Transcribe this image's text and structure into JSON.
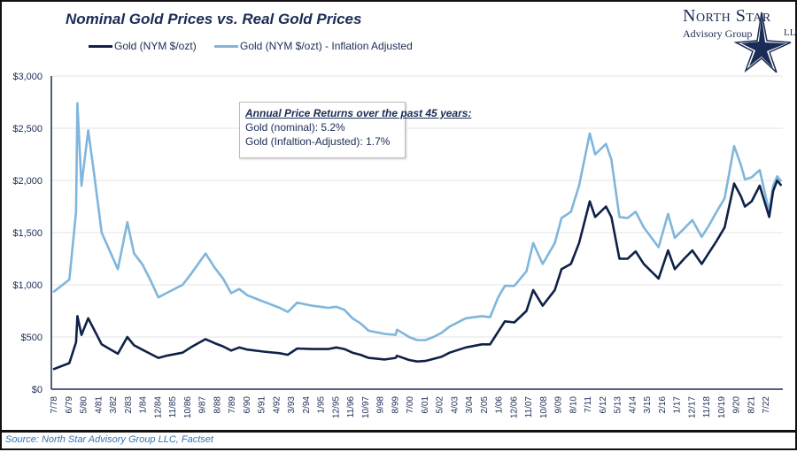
{
  "chart_data": {
    "type": "line",
    "title": "Nominal Gold Prices vs. Real Gold Prices",
    "xlabel": "",
    "ylabel": "",
    "ylim": [
      0,
      3000
    ],
    "y_ticks": [
      "$0",
      "$500",
      "$1,000",
      "$1,500",
      "$2,000",
      "$2,500",
      "$3,000"
    ],
    "y_tick_values": [
      0,
      500,
      1000,
      1500,
      2000,
      2500,
      3000
    ],
    "x_ticks": [
      "7/78",
      "6/79",
      "5/80",
      "4/81",
      "3/82",
      "2/83",
      "1/84",
      "12/84",
      "11/85",
      "10/86",
      "9/87",
      "8/88",
      "7/89",
      "6/90",
      "5/91",
      "4/92",
      "3/93",
      "2/94",
      "1/95",
      "12/95",
      "11/96",
      "10/97",
      "9/98",
      "8/99",
      "7/00",
      "6/01",
      "5/02",
      "4/03",
      "3/04",
      "2/05",
      "1/06",
      "12/06",
      "11/07",
      "10/08",
      "9/09",
      "8/10",
      "7/11",
      "6/12",
      "5/13",
      "4/14",
      "3/15",
      "2/16",
      "1/17",
      "12/17",
      "11/18",
      "10/19",
      "9/20",
      "8/21",
      "7/22"
    ],
    "grid": true,
    "legend_position": "top",
    "x": [
      "1978-07",
      "1979-07",
      "1979-12",
      "1980-01",
      "1980-04",
      "1980-09",
      "1981-01",
      "1981-07",
      "1982-07",
      "1983-02",
      "1983-07",
      "1984-01",
      "1984-07",
      "1985-01",
      "1985-07",
      "1986-07",
      "1987-01",
      "1987-12",
      "1988-07",
      "1989-01",
      "1989-07",
      "1990-01",
      "1990-07",
      "1991-07",
      "1992-07",
      "1993-01",
      "1993-08",
      "1994-07",
      "1995-07",
      "1996-01",
      "1996-07",
      "1997-01",
      "1997-07",
      "1998-01",
      "1999-01",
      "1999-09",
      "1999-10",
      "2000-07",
      "2001-01",
      "2001-07",
      "2002-01",
      "2002-07",
      "2003-01",
      "2004-01",
      "2005-01",
      "2005-07",
      "2006-01",
      "2006-06",
      "2007-01",
      "2007-10",
      "2008-03",
      "2008-10",
      "2009-07",
      "2009-12",
      "2010-07",
      "2011-01",
      "2011-09",
      "2012-01",
      "2012-09",
      "2013-01",
      "2013-07",
      "2014-01",
      "2014-07",
      "2015-01",
      "2015-12",
      "2016-07",
      "2016-12",
      "2017-07",
      "2018-01",
      "2018-08",
      "2019-01",
      "2019-07",
      "2020-01",
      "2020-08",
      "2021-01",
      "2021-04",
      "2021-09",
      "2022-03",
      "2022-10",
      "2023-01",
      "2023-04",
      "2023-07"
    ],
    "series": [
      {
        "name": "Gold (NYM $/ozt)",
        "color": "#0f2147",
        "values": [
          190,
          250,
          450,
          700,
          520,
          680,
          580,
          430,
          340,
          500,
          420,
          380,
          340,
          300,
          320,
          350,
          400,
          480,
          440,
          410,
          370,
          400,
          380,
          360,
          345,
          330,
          390,
          385,
          385,
          400,
          385,
          350,
          330,
          300,
          285,
          300,
          320,
          280,
          265,
          270,
          290,
          310,
          350,
          400,
          430,
          430,
          550,
          650,
          640,
          750,
          950,
          800,
          950,
          1150,
          1200,
          1400,
          1800,
          1650,
          1750,
          1650,
          1250,
          1250,
          1320,
          1200,
          1060,
          1330,
          1150,
          1250,
          1330,
          1200,
          1300,
          1420,
          1550,
          1970,
          1850,
          1750,
          1800,
          1950,
          1650,
          1900,
          2000,
          1950
        ]
      },
      {
        "name": "Gold (NYM $/ozt) - Inflation Adjusted",
        "color": "#7fb6dc",
        "values": [
          930,
          1050,
          1700,
          2740,
          1950,
          2480,
          2100,
          1500,
          1150,
          1600,
          1300,
          1200,
          1050,
          880,
          920,
          1000,
          1100,
          1300,
          1160,
          1060,
          920,
          960,
          900,
          840,
          780,
          740,
          830,
          800,
          780,
          790,
          760,
          680,
          630,
          560,
          530,
          520,
          570,
          500,
          470,
          470,
          500,
          540,
          600,
          680,
          700,
          690,
          880,
          990,
          990,
          1130,
          1400,
          1200,
          1400,
          1640,
          1700,
          1950,
          2450,
          2250,
          2350,
          2200,
          1650,
          1640,
          1700,
          1550,
          1360,
          1680,
          1450,
          1540,
          1620,
          1460,
          1560,
          1700,
          1830,
          2330,
          2150,
          2010,
          2030,
          2100,
          1700,
          1950,
          2040,
          1990
        ]
      }
    ]
  },
  "annotation": {
    "title": "Annual Price Returns over the past 45 years:",
    "lines": [
      "Gold (nominal): 5.2%",
      "Gold (Infaltion-Adjusted): 1.7%"
    ]
  },
  "logo": {
    "name": "North Star",
    "sub": "Advisory Group",
    "llc": "LLC"
  },
  "source": "Source: North Star Advisory Group LLC, Factset"
}
